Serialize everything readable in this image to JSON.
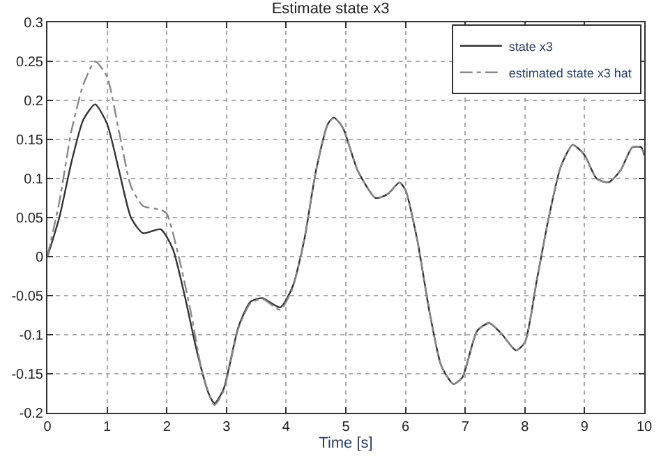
{
  "chart_data": {
    "type": "line",
    "title": "Estimate state x3",
    "xlabel": "Time [s]",
    "xlim": [
      0,
      10
    ],
    "xticks": [
      0,
      1,
      2,
      3,
      4,
      5,
      6,
      7,
      8,
      9,
      10
    ],
    "ylim": [
      -0.2,
      0.3
    ],
    "yticks": [
      -0.2,
      -0.15,
      -0.1,
      -0.05,
      0,
      0.05,
      0.1,
      0.15,
      0.2,
      0.25,
      0.3
    ],
    "grid": true,
    "legend": "top right",
    "series": [
      {
        "name": "state x3",
        "color": "#333333",
        "line_style": "solid",
        "x": [
          0,
          0.2,
          0.4,
          0.6,
          0.8,
          1.0,
          1.2,
          1.4,
          1.6,
          1.9,
          2.1,
          2.3,
          2.5,
          2.7,
          2.8,
          2.95,
          3.2,
          3.4,
          3.6,
          3.9,
          4.1,
          4.3,
          4.5,
          4.7,
          4.8,
          4.95,
          5.2,
          5.5,
          5.7,
          5.9,
          6.0,
          6.2,
          6.4,
          6.6,
          6.8,
          6.95,
          7.2,
          7.4,
          7.6,
          7.85,
          8.0,
          8.2,
          8.4,
          8.6,
          8.8,
          9.0,
          9.2,
          9.4,
          9.6,
          9.8,
          9.95,
          10
        ],
        "values": [
          0,
          0.05,
          0.12,
          0.175,
          0.195,
          0.17,
          0.11,
          0.05,
          0.03,
          0.035,
          0.01,
          -0.05,
          -0.12,
          -0.175,
          -0.188,
          -0.17,
          -0.09,
          -0.058,
          -0.053,
          -0.065,
          -0.04,
          0.02,
          0.11,
          0.17,
          0.178,
          0.165,
          0.11,
          0.075,
          0.08,
          0.095,
          0.085,
          0.02,
          -0.07,
          -0.14,
          -0.163,
          -0.155,
          -0.095,
          -0.085,
          -0.098,
          -0.12,
          -0.11,
          -0.03,
          0.05,
          0.115,
          0.143,
          0.13,
          0.1,
          0.095,
          0.11,
          0.14,
          0.14,
          0.13
        ]
      },
      {
        "name": "estimated state x3 hat",
        "color": "#888888",
        "line_style": "dashdot",
        "x": [
          0,
          0.2,
          0.4,
          0.6,
          0.8,
          1.0,
          1.2,
          1.4,
          1.6,
          1.9,
          2.0,
          2.2,
          2.4,
          2.6,
          2.8,
          2.95,
          3.2,
          3.4,
          3.6,
          3.9,
          4.1,
          4.3,
          4.5,
          4.7,
          4.8,
          4.95,
          5.2,
          5.5,
          5.7,
          5.9,
          6.0,
          6.2,
          6.4,
          6.6,
          6.8,
          6.95,
          7.2,
          7.4,
          7.6,
          7.85,
          8.0,
          8.2,
          8.4,
          8.6,
          8.8,
          9.0,
          9.2,
          9.4,
          9.6,
          9.8,
          9.95,
          10
        ],
        "values": [
          0,
          0.07,
          0.16,
          0.22,
          0.25,
          0.23,
          0.16,
          0.09,
          0.065,
          0.06,
          0.055,
          0.0,
          -0.07,
          -0.15,
          -0.19,
          -0.172,
          -0.092,
          -0.06,
          -0.054,
          -0.068,
          -0.042,
          0.02,
          0.11,
          0.17,
          0.178,
          0.165,
          0.11,
          0.075,
          0.08,
          0.095,
          0.085,
          0.02,
          -0.07,
          -0.14,
          -0.163,
          -0.155,
          -0.095,
          -0.085,
          -0.098,
          -0.12,
          -0.11,
          -0.03,
          0.05,
          0.115,
          0.143,
          0.13,
          0.1,
          0.095,
          0.11,
          0.14,
          0.14,
          0.13
        ]
      }
    ]
  }
}
